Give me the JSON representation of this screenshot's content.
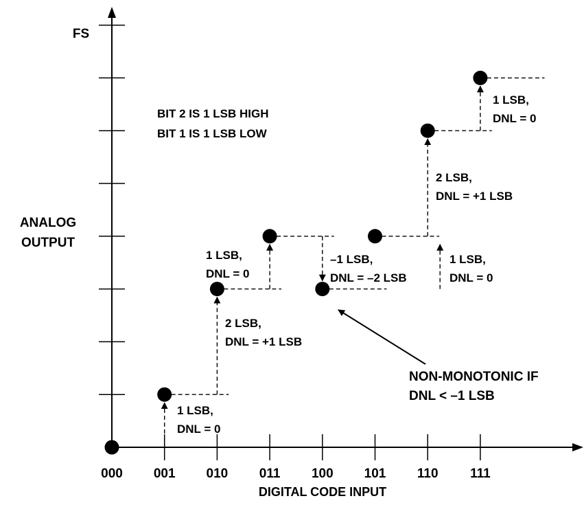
{
  "diagram": {
    "y_top_label": "FS",
    "y_axis_title_lines": [
      "ANALOG",
      "OUTPUT"
    ],
    "x_axis_title": "DIGITAL CODE INPUT",
    "x_ticks": [
      "000",
      "001",
      "010",
      "011",
      "100",
      "101",
      "110",
      "111"
    ],
    "legend_lines": [
      "BIT 2 IS 1 LSB HIGH",
      "BIT 1 IS 1 LSB LOW"
    ],
    "points": [
      {
        "code": "000",
        "level": 0
      },
      {
        "code": "001",
        "level": 1
      },
      {
        "code": "010",
        "level": 3
      },
      {
        "code": "011",
        "level": 4
      },
      {
        "code": "100",
        "level": 3
      },
      {
        "code": "101",
        "level": 4
      },
      {
        "code": "110",
        "level": 6
      },
      {
        "code": "111",
        "level": 7
      }
    ],
    "step_annotations": [
      {
        "lines": [
          "1 LSB,",
          "DNL = 0"
        ]
      },
      {
        "lines": [
          "2 LSB,",
          "DNL = +1 LSB"
        ]
      },
      {
        "lines": [
          "1 LSB,",
          "DNL = 0"
        ]
      },
      {
        "lines": [
          "–1 LSB,",
          "DNL = –2 LSB"
        ]
      },
      {
        "lines": [
          "1 LSB,",
          "DNL = 0"
        ]
      },
      {
        "lines": [
          "2 LSB,",
          "DNL = +1 LSB"
        ]
      },
      {
        "lines": [
          "1 LSB,",
          "DNL = 0"
        ]
      }
    ],
    "callout_lines": [
      "NON-MONOTONIC IF",
      "DNL < –1 LSB"
    ]
  }
}
